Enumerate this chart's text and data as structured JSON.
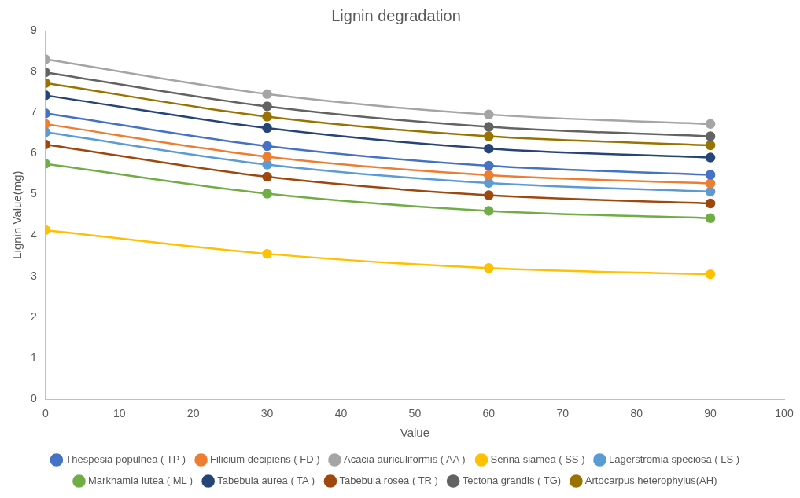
{
  "chart_data": {
    "type": "line",
    "title": "Lignin degradation",
    "xlabel": "Value",
    "ylabel": "Lignin Value(mg)",
    "x": [
      0,
      30,
      60,
      90
    ],
    "xlim": [
      0,
      100
    ],
    "xticks": [
      0,
      10,
      20,
      30,
      40,
      50,
      60,
      70,
      80,
      90,
      100
    ],
    "ylim": [
      0,
      9
    ],
    "yticks": [
      0,
      1,
      2,
      3,
      4,
      5,
      6,
      7,
      8,
      9
    ],
    "grid": false,
    "legend": "bottom",
    "marker": "circle",
    "line_style": "solid",
    "series": [
      {
        "name": "Thespesia populnea ( TP )",
        "color": "#4472c4",
        "values": [
          6.98,
          6.18,
          5.7,
          5.48
        ]
      },
      {
        "name": "Filicium decipiens ( FD )",
        "color": "#ed7d31",
        "values": [
          6.72,
          5.92,
          5.47,
          5.27
        ]
      },
      {
        "name": "Acacia auriculiformis ( AA )",
        "color": "#a5a5a5",
        "values": [
          8.3,
          7.45,
          6.95,
          6.72
        ]
      },
      {
        "name": "Senna siamea ( SS )",
        "color": "#ffc000",
        "values": [
          4.13,
          3.55,
          3.2,
          3.05
        ]
      },
      {
        "name": "Lagerstromia speciosa ( LS )",
        "color": "#5b9bd5",
        "values": [
          6.52,
          5.73,
          5.28,
          5.07
        ]
      },
      {
        "name": "Markhamia lutea ( ML )",
        "color": "#70ad47",
        "values": [
          5.75,
          5.02,
          4.6,
          4.42
        ]
      },
      {
        "name": "Tabebuia aurea ( TA )",
        "color": "#264478",
        "values": [
          7.42,
          6.62,
          6.12,
          5.9
        ]
      },
      {
        "name": "Tabebuia rosea ( TR )",
        "color": "#9e480e",
        "values": [
          6.22,
          5.43,
          4.98,
          4.78
        ]
      },
      {
        "name": "Tectona grandis ( TG)",
        "color": "#636363",
        "values": [
          7.98,
          7.15,
          6.65,
          6.42
        ]
      },
      {
        "name": "Artocarpus heterophylus(AH)",
        "color": "#997300",
        "values": [
          7.72,
          6.9,
          6.42,
          6.2
        ]
      }
    ]
  }
}
